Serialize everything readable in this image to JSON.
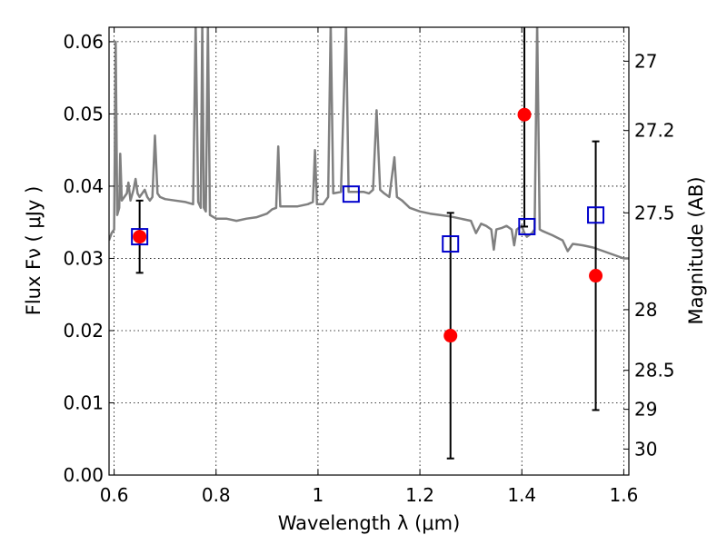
{
  "chart_data": {
    "type": "scatter",
    "xlabel": "Wavelength  λ (μm)",
    "ylabel": "Flux  Fν  ( μJy )",
    "y2label": "Magnitude (AB)",
    "xlim": [
      0.59,
      1.61
    ],
    "ylim": [
      0.0,
      0.062
    ],
    "grid": true,
    "x_ticks": [
      {
        "value": 0.6,
        "label": "0.6"
      },
      {
        "value": 0.8,
        "label": "0.8"
      },
      {
        "value": 1.0,
        "label": "1"
      },
      {
        "value": 1.2,
        "label": "1.2"
      },
      {
        "value": 1.4,
        "label": "1.4"
      },
      {
        "value": 1.6,
        "label": "1.6"
      }
    ],
    "y_ticks": [
      {
        "value": 0.0,
        "label": "0.00"
      },
      {
        "value": 0.01,
        "label": "0.01"
      },
      {
        "value": 0.02,
        "label": "0.02"
      },
      {
        "value": 0.03,
        "label": "0.03"
      },
      {
        "value": 0.04,
        "label": "0.04"
      },
      {
        "value": 0.05,
        "label": "0.05"
      },
      {
        "value": 0.06,
        "label": "0.06"
      }
    ],
    "y2_ticks": [
      {
        "flux": 0.0573,
        "label": "27"
      },
      {
        "flux": 0.0477,
        "label": "27.2"
      },
      {
        "flux": 0.0363,
        "label": "27.5"
      },
      {
        "flux": 0.0229,
        "label": "28"
      },
      {
        "flux": 0.0145,
        "label": "28.5"
      },
      {
        "flux": 0.0091,
        "label": "29"
      },
      {
        "flux": 0.0036,
        "label": "30"
      }
    ],
    "observed": {
      "color": "#ff0000",
      "marker": "circle",
      "points": [
        {
          "x": 0.65,
          "y": 0.033,
          "yerr": 0.005
        },
        {
          "x": 1.26,
          "y": 0.0193,
          "yerr": 0.017
        },
        {
          "x": 1.405,
          "y": 0.0499,
          "yerr": 0.0155
        },
        {
          "x": 1.545,
          "y": 0.0276,
          "yerr": 0.0186
        }
      ]
    },
    "model_photometry": {
      "color": "#0000cc",
      "marker": "square",
      "points": [
        {
          "x": 0.65,
          "y": 0.033
        },
        {
          "x": 1.065,
          "y": 0.0389
        },
        {
          "x": 1.26,
          "y": 0.032
        },
        {
          "x": 1.41,
          "y": 0.0344
        },
        {
          "x": 1.545,
          "y": 0.036
        }
      ]
    },
    "template_spectrum": {
      "color": "#808080",
      "points": [
        [
          0.59,
          0.0325
        ],
        [
          0.595,
          0.0335
        ],
        [
          0.6,
          0.034
        ],
        [
          0.603,
          0.06
        ],
        [
          0.606,
          0.036
        ],
        [
          0.61,
          0.037
        ],
        [
          0.612,
          0.0445
        ],
        [
          0.615,
          0.038
        ],
        [
          0.62,
          0.0385
        ],
        [
          0.625,
          0.039
        ],
        [
          0.628,
          0.0405
        ],
        [
          0.632,
          0.038
        ],
        [
          0.638,
          0.0395
        ],
        [
          0.642,
          0.041
        ],
        [
          0.646,
          0.039
        ],
        [
          0.65,
          0.0385
        ],
        [
          0.655,
          0.039
        ],
        [
          0.66,
          0.0395
        ],
        [
          0.665,
          0.0385
        ],
        [
          0.67,
          0.038
        ],
        [
          0.675,
          0.0385
        ],
        [
          0.68,
          0.047
        ],
        [
          0.685,
          0.039
        ],
        [
          0.69,
          0.0385
        ],
        [
          0.7,
          0.0382
        ],
        [
          0.72,
          0.038
        ],
        [
          0.74,
          0.0378
        ],
        [
          0.755,
          0.0375
        ],
        [
          0.76,
          0.0625
        ],
        [
          0.765,
          0.0378
        ],
        [
          0.77,
          0.037
        ],
        [
          0.773,
          0.0625
        ],
        [
          0.776,
          0.037
        ],
        [
          0.78,
          0.0365
        ],
        [
          0.784,
          0.0625
        ],
        [
          0.788,
          0.036
        ],
        [
          0.8,
          0.0355
        ],
        [
          0.82,
          0.0355
        ],
        [
          0.84,
          0.0352
        ],
        [
          0.86,
          0.0355
        ],
        [
          0.88,
          0.0357
        ],
        [
          0.9,
          0.0362
        ],
        [
          0.91,
          0.0368
        ],
        [
          0.918,
          0.037
        ],
        [
          0.922,
          0.0455
        ],
        [
          0.926,
          0.0372
        ],
        [
          0.94,
          0.0372
        ],
        [
          0.96,
          0.0372
        ],
        [
          0.98,
          0.0375
        ],
        [
          0.99,
          0.0378
        ],
        [
          0.994,
          0.045
        ],
        [
          0.998,
          0.0375
        ],
        [
          1.01,
          0.0375
        ],
        [
          1.02,
          0.0385
        ],
        [
          1.025,
          0.0625
        ],
        [
          1.03,
          0.039
        ],
        [
          1.045,
          0.0392
        ],
        [
          1.055,
          0.0625
        ],
        [
          1.06,
          0.0392
        ],
        [
          1.07,
          0.0392
        ],
        [
          1.09,
          0.0392
        ],
        [
          1.1,
          0.039
        ],
        [
          1.108,
          0.0395
        ],
        [
          1.115,
          0.0505
        ],
        [
          1.122,
          0.0395
        ],
        [
          1.13,
          0.039
        ],
        [
          1.14,
          0.0385
        ],
        [
          1.15,
          0.044
        ],
        [
          1.155,
          0.0385
        ],
        [
          1.165,
          0.038
        ],
        [
          1.18,
          0.037
        ],
        [
          1.2,
          0.0365
        ],
        [
          1.22,
          0.0362
        ],
        [
          1.24,
          0.036
        ],
        [
          1.26,
          0.0358
        ],
        [
          1.28,
          0.0355
        ],
        [
          1.3,
          0.0352
        ],
        [
          1.31,
          0.0335
        ],
        [
          1.32,
          0.0348
        ],
        [
          1.33,
          0.0345
        ],
        [
          1.34,
          0.034
        ],
        [
          1.345,
          0.0312
        ],
        [
          1.35,
          0.034
        ],
        [
          1.36,
          0.0342
        ],
        [
          1.37,
          0.0345
        ],
        [
          1.38,
          0.034
        ],
        [
          1.385,
          0.0318
        ],
        [
          1.39,
          0.034
        ],
        [
          1.4,
          0.0345
        ],
        [
          1.405,
          0.0335
        ],
        [
          1.41,
          0.033
        ],
        [
          1.42,
          0.0335
        ],
        [
          1.425,
          0.034
        ],
        [
          1.43,
          0.0625
        ],
        [
          1.435,
          0.034
        ],
        [
          1.44,
          0.0338
        ],
        [
          1.46,
          0.0332
        ],
        [
          1.48,
          0.0325
        ],
        [
          1.49,
          0.031
        ],
        [
          1.5,
          0.032
        ],
        [
          1.52,
          0.0318
        ],
        [
          1.54,
          0.0315
        ],
        [
          1.56,
          0.031
        ],
        [
          1.58,
          0.0305
        ],
        [
          1.6,
          0.03
        ],
        [
          1.61,
          0.03
        ]
      ]
    }
  }
}
